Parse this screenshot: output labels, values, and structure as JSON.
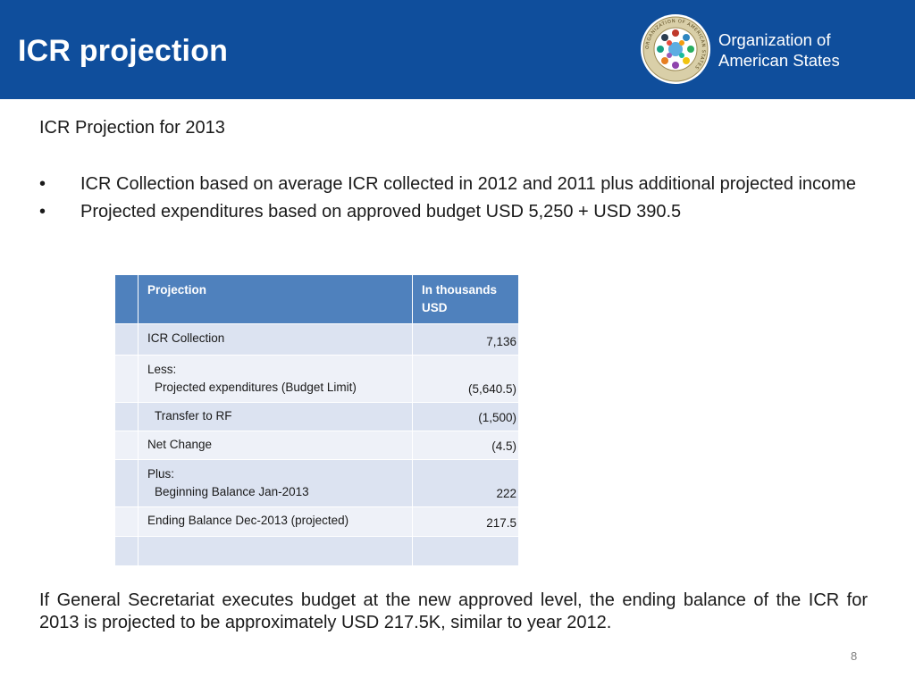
{
  "header": {
    "title": "ICR projection",
    "org_line1": "Organization of",
    "org_line2": "American States",
    "seal_text": "ORGANIZATION OF AMERICAN STATES",
    "colors": {
      "bar": "#0f4e9c",
      "seal_ring": "#c9b98a"
    }
  },
  "subtitle": "ICR Projection for 2013",
  "bullets": [
    "ICR Collection based on average ICR collected in 2012 and 2011 plus additional projected income",
    "Projected expenditures based on approved budget USD 5,250 + USD 390.5"
  ],
  "table": {
    "header": {
      "label": "Projection",
      "value": "In thousands USD"
    },
    "rows": [
      {
        "label": "ICR Collection",
        "sub": "",
        "value": "7,136"
      },
      {
        "label": "Less:",
        "sub": "Projected expenditures (Budget Limit)",
        "value": "(5,640.5)"
      },
      {
        "label": "",
        "sub": "Transfer to RF",
        "value": "(1,500)"
      },
      {
        "label": "Net Change",
        "sub": "",
        "value": "(4.5)"
      },
      {
        "label": "Plus:",
        "sub": "Beginning Balance Jan-2013",
        "value": "222"
      },
      {
        "label": "Ending Balance Dec-2013 (projected)",
        "sub": "",
        "value": "217.5"
      },
      {
        "label": "",
        "sub": "",
        "value": ""
      }
    ],
    "colors": {
      "header": "#4f81bd",
      "row": "#dce3f1",
      "row_alt": "#eef1f8"
    }
  },
  "conclusion": "If General Secretariat executes budget at the new approved level, the ending balance of the ICR for 2013 is projected to be approximately USD 217.5K, similar to year 2012.",
  "page_number": "8"
}
